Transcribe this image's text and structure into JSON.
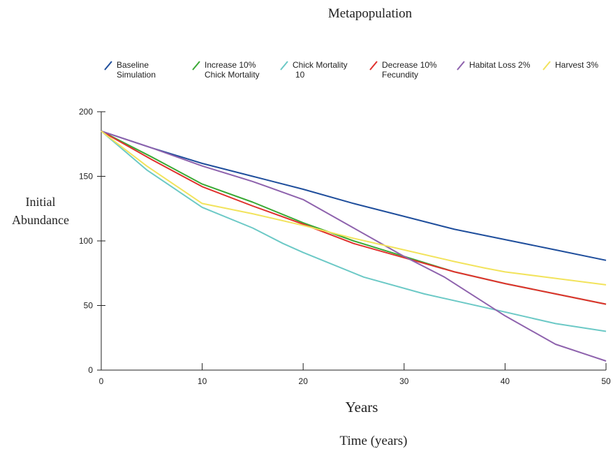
{
  "chart_data": {
    "type": "line",
    "title": "Metapopulation",
    "xlabel": "Years",
    "subxlabel": "Time (years)",
    "ylabel_lines": [
      "Initial",
      "Abundance"
    ],
    "xlim": [
      0,
      50
    ],
    "ylim": [
      0,
      200
    ],
    "xticks": [
      0,
      10,
      20,
      30,
      40,
      50
    ],
    "yticks": [
      0,
      50,
      100,
      150,
      200
    ],
    "grid": false,
    "legend_position": "top",
    "series": [
      {
        "name_lines": [
          "Baseline",
          "Simulation"
        ],
        "color": "#1f4e9c",
        "x": [
          0,
          5,
          10,
          15,
          20,
          25,
          30,
          35,
          40,
          45,
          50
        ],
        "y": [
          185,
          172,
          160,
          150,
          140,
          129,
          119,
          109,
          101,
          93,
          85
        ]
      },
      {
        "name_lines": [
          "Increase 10%",
          "Chick Mortality"
        ],
        "color": "#3aa935",
        "x": [
          0,
          5,
          10,
          15,
          20,
          25,
          30,
          35,
          40,
          45,
          50
        ],
        "y": [
          185,
          165,
          144,
          130,
          114,
          100,
          88,
          76,
          67,
          59,
          51
        ]
      },
      {
        "name_lines": [
          "Chick Mortality",
          "10"
        ],
        "color": "#6cc9c6",
        "x": [
          0,
          4.5,
          10,
          15,
          18,
          20,
          26,
          32,
          40,
          45,
          50
        ],
        "y": [
          185,
          155,
          126,
          110,
          98,
          91,
          72,
          59,
          45,
          36,
          30
        ]
      },
      {
        "name_lines": [
          "Decrease 10%",
          "Fecundity"
        ],
        "color": "#e0312d",
        "x": [
          0,
          5,
          10,
          15,
          20,
          25,
          30,
          35,
          40,
          45,
          50
        ],
        "y": [
          185,
          163,
          142,
          127,
          113,
          98,
          87,
          76,
          67,
          59,
          51
        ]
      },
      {
        "name_lines": [
          "Habitat Loss 2%"
        ],
        "color": "#8e62ad",
        "x": [
          0,
          5,
          10,
          15,
          20,
          25,
          30,
          34,
          40,
          45,
          50
        ],
        "y": [
          185,
          172,
          158,
          146,
          132,
          110,
          88,
          72,
          42,
          20,
          7
        ]
      },
      {
        "name_lines": [
          "Harvest 3%"
        ],
        "color": "#f2e35c",
        "x": [
          0,
          4.5,
          10,
          15,
          20,
          25,
          30,
          35,
          38,
          40,
          45,
          50
        ],
        "y": [
          185,
          158,
          129,
          121,
          112,
          102,
          93,
          84,
          79,
          76,
          71,
          66
        ]
      }
    ]
  }
}
